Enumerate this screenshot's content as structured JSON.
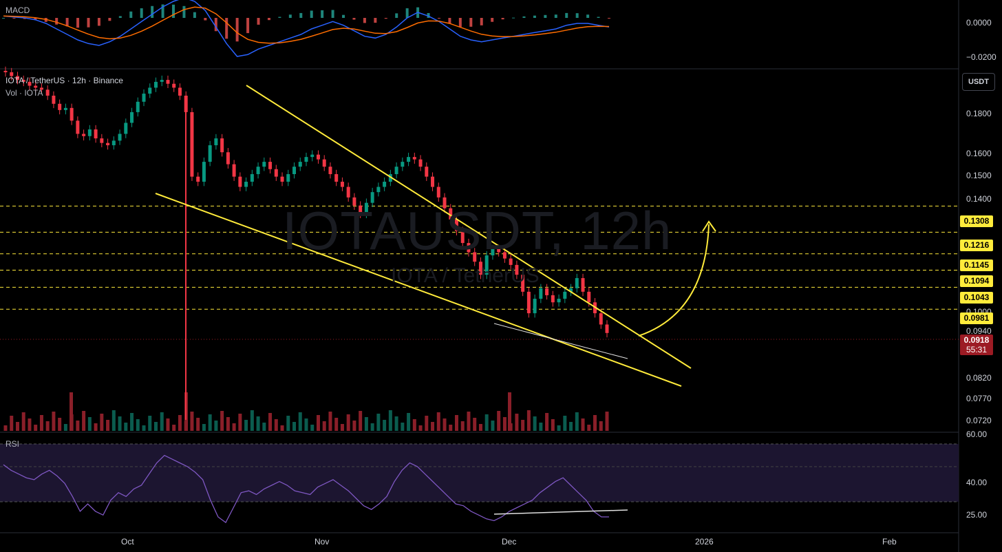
{
  "header": {
    "symbol_line": "IOTA / TetherUS · 12h · Binance",
    "volume_line": "Vol · IOTA",
    "currency_button": "USDT"
  },
  "watermark": {
    "main": "IOTAUSDT, 12h",
    "sub": "IOTA / TetherUS"
  },
  "macd_panel": {
    "title": "MACD",
    "axis": [
      "0.0000",
      "−0.0200"
    ]
  },
  "rsi_panel": {
    "title": "RSI",
    "axis": [
      "60.00",
      "40.00",
      "25.00"
    ]
  },
  "price_axis": [
    "0.1800",
    "0.1600",
    "0.1500",
    "0.1400",
    "0.1000",
    "0.0940",
    "0.0820",
    "0.0770",
    "0.0720"
  ],
  "levels": [
    "0.1308",
    "0.1216",
    "0.1145",
    "0.1094",
    "0.1043",
    "0.0981"
  ],
  "current_price": {
    "value": "0.0918",
    "countdown": "55:31"
  },
  "date_axis": [
    "Oct",
    "Nov",
    "Dec",
    "2026",
    "Feb"
  ],
  "colors": {
    "up": "#089981",
    "down": "#f23645",
    "annotation": "#ffeb3b",
    "macd_line": "#2962ff",
    "signal_line": "#ff6d00",
    "rsi_line": "#7e57c2"
  },
  "chart_data": {
    "type": "candlestick",
    "title": "IOTA / TetherUS · 12h · Binance",
    "price_ylim": [
      0.07,
      0.19
    ],
    "close": [
      0.19,
      0.188,
      0.186,
      0.185,
      0.183,
      0.182,
      0.181,
      0.178,
      0.174,
      0.171,
      0.172,
      0.166,
      0.16,
      0.159,
      0.162,
      0.158,
      0.156,
      0.155,
      0.157,
      0.16,
      0.165,
      0.17,
      0.175,
      0.179,
      0.182,
      0.185,
      0.186,
      0.184,
      0.182,
      0.178,
      0.17,
      0.142,
      0.14,
      0.148,
      0.155,
      0.158,
      0.152,
      0.147,
      0.142,
      0.138,
      0.14,
      0.143,
      0.146,
      0.148,
      0.145,
      0.142,
      0.14,
      0.143,
      0.146,
      0.148,
      0.15,
      0.151,
      0.149,
      0.146,
      0.143,
      0.14,
      0.138,
      0.134,
      0.131,
      0.128,
      0.132,
      0.136,
      0.138,
      0.14,
      0.143,
      0.146,
      0.148,
      0.15,
      0.149,
      0.146,
      0.142,
      0.138,
      0.134,
      0.13,
      0.126,
      0.122,
      0.118,
      0.115,
      0.112,
      0.108,
      0.114,
      0.116,
      0.115,
      0.113,
      0.111,
      0.108,
      0.103,
      0.097,
      0.101,
      0.104,
      0.102,
      0.1,
      0.101,
      0.103,
      0.104,
      0.107,
      0.103,
      0.1,
      0.097,
      0.094,
      0.0918
    ],
    "levels": [
      0.1308,
      0.1216,
      0.1145,
      0.1094,
      0.1043,
      0.0981
    ],
    "current": 0.0918,
    "macd": [
      0.001,
      0.0005,
      0.0,
      -0.001,
      -0.003,
      -0.006,
      -0.009,
      -0.012,
      -0.014,
      -0.015,
      -0.013,
      -0.01,
      -0.006,
      -0.002,
      0.002,
      0.006,
      0.009,
      0.011,
      0.009,
      0.004,
      -0.005,
      -0.014,
      -0.021,
      -0.02,
      -0.017,
      -0.015,
      -0.013,
      -0.011,
      -0.009,
      -0.006,
      -0.004,
      -0.002,
      -0.004,
      -0.007,
      -0.01,
      -0.011,
      -0.009,
      -0.005,
      0.0,
      0.003,
      0.001,
      -0.002,
      -0.006,
      -0.01,
      -0.012,
      -0.013,
      -0.012,
      -0.011,
      -0.01,
      -0.009,
      -0.008,
      -0.007,
      -0.006,
      -0.004,
      -0.003,
      -0.003,
      -0.004,
      -0.005
    ],
    "macd_ylim": [
      -0.024,
      0.006
    ],
    "rsi": [
      55,
      52,
      50,
      48,
      47,
      50,
      52,
      49,
      45,
      38,
      30,
      34,
      30,
      28,
      36,
      40,
      38,
      42,
      44,
      50,
      56,
      60,
      58,
      56,
      54,
      51,
      47,
      36,
      27,
      24,
      32,
      40,
      41,
      39,
      42,
      44,
      46,
      44,
      41,
      40,
      39,
      43,
      45,
      47,
      44,
      41,
      37,
      33,
      31,
      34,
      38,
      46,
      52,
      56,
      54,
      50,
      46,
      42,
      38,
      34,
      33,
      30,
      28,
      26,
      25,
      27,
      30,
      32,
      34,
      36,
      40,
      43,
      46,
      48,
      44,
      40,
      36,
      30,
      27,
      27
    ],
    "rsi_ylim": [
      20,
      68
    ]
  }
}
